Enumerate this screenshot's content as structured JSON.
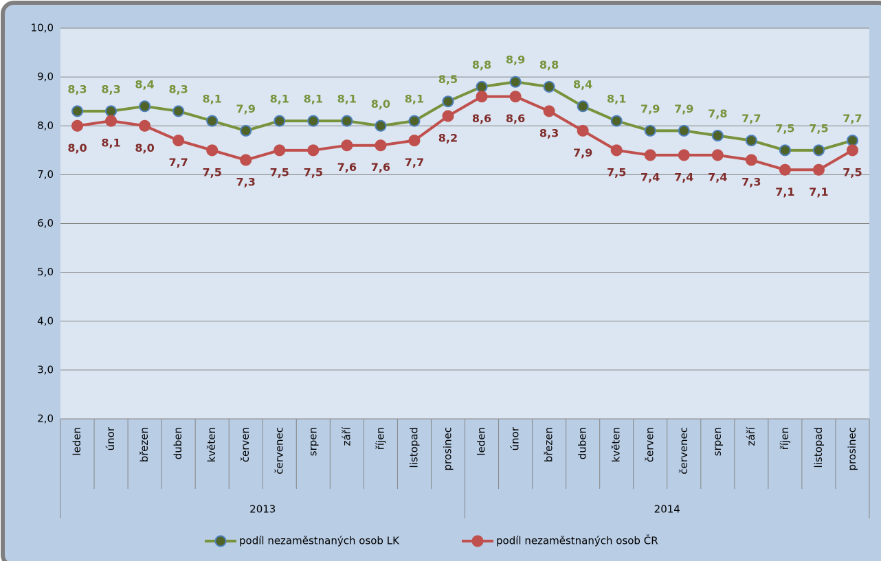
{
  "chart_data": {
    "type": "line",
    "groups": [
      {
        "name": "2013",
        "categories": [
          "leden",
          "únor",
          "březen",
          "duben",
          "květen",
          "červen",
          "červenec",
          "srpen",
          "září",
          "říjen",
          "listopad",
          "prosinec"
        ]
      },
      {
        "name": "2014",
        "categories": [
          "leden",
          "únor",
          "březen",
          "duben",
          "květen",
          "červen",
          "červenec",
          "srpen",
          "září",
          "říjen",
          "listopad",
          "prosinec"
        ]
      }
    ],
    "series": [
      {
        "name": "podíl nezaměstnaných osob LK",
        "color": "#77933c",
        "marker_color": "#4f6228",
        "label_color": "#77933c",
        "values": [
          8.3,
          8.3,
          8.4,
          8.3,
          8.1,
          7.9,
          8.1,
          8.1,
          8.1,
          8.0,
          8.1,
          8.5,
          8.8,
          8.9,
          8.8,
          8.4,
          8.1,
          7.9,
          7.9,
          7.8,
          7.7,
          7.5,
          7.5,
          7.7
        ],
        "value_labels": [
          "8,3",
          "8,3",
          "8,4",
          "8,3",
          "8,1",
          "7,9",
          "8,1",
          "8,1",
          "8,1",
          "8,0",
          "8,1",
          "8,5",
          "8,8",
          "8,9",
          "8,8",
          "8,4",
          "8,1",
          "7,9",
          "7,9",
          "7,8",
          "7,7",
          "7,5",
          "7,5",
          "7,7"
        ]
      },
      {
        "name": "podíl nezaměstnaných osob ČR",
        "color": "#c0504d",
        "marker_color": "#c0504d",
        "label_color": "#7f2b29",
        "values": [
          8.0,
          8.1,
          8.0,
          7.7,
          7.5,
          7.3,
          7.5,
          7.5,
          7.6,
          7.6,
          7.7,
          8.2,
          8.6,
          8.6,
          8.3,
          7.9,
          7.5,
          7.4,
          7.4,
          7.4,
          7.3,
          7.1,
          7.1,
          7.5
        ],
        "value_labels": [
          "8,0",
          "8,1",
          "8,0",
          "7,7",
          "7,5",
          "7,3",
          "7,5",
          "7,5",
          "7,6",
          "7,6",
          "7,7",
          "8,2",
          "8,6",
          "8,6",
          "8,3",
          "7,9",
          "7,5",
          "7,4",
          "7,4",
          "7,4",
          "7,3",
          "7,1",
          "7,1",
          "7,5"
        ]
      }
    ],
    "ylim": [
      2,
      10
    ],
    "yticks": [
      {
        "value": 2,
        "label": "2,0"
      },
      {
        "value": 3,
        "label": "3,0"
      },
      {
        "value": 4,
        "label": "4,0"
      },
      {
        "value": 5,
        "label": "5,0"
      },
      {
        "value": 6,
        "label": "6,0"
      },
      {
        "value": 7,
        "label": "7,0"
      },
      {
        "value": 8,
        "label": "8,0"
      },
      {
        "value": 9,
        "label": "9,0"
      },
      {
        "value": 10,
        "label": "10,0"
      }
    ],
    "grid": true,
    "legend": "bottom"
  }
}
